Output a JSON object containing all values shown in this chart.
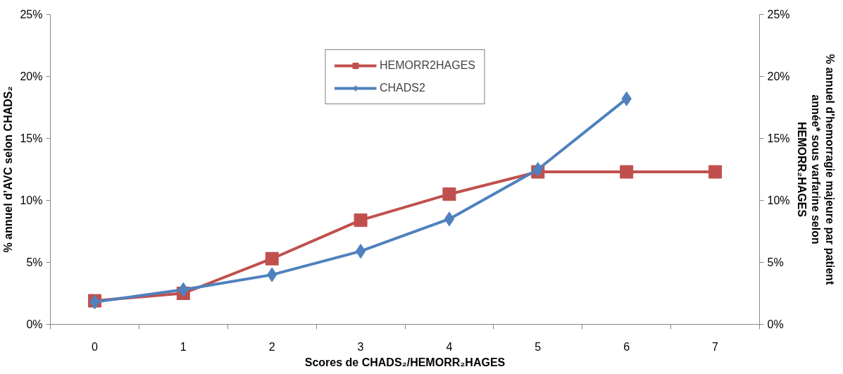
{
  "chart_data": {
    "type": "line",
    "categories": [
      "0",
      "1",
      "2",
      "3",
      "4",
      "5",
      "6",
      "7"
    ],
    "xlabel": "Scores de CHADS₂/HEMORR₂HAGES",
    "ylabel": "% annuel d’AVC selon CHADS₂",
    "y2label": "% annuel d'hemorragie majeure par patient\nannée* sous varfarine selon\nHEMORR₂HAGES",
    "ylim": [
      0,
      25
    ],
    "yticks": [
      {
        "value": 0,
        "label": "0%"
      },
      {
        "value": 5,
        "label": "5%"
      },
      {
        "value": 10,
        "label": "10%"
      },
      {
        "value": 15,
        "label": "15%"
      },
      {
        "value": 20,
        "label": "20%"
      },
      {
        "value": 25,
        "label": "25%"
      }
    ],
    "y2lim": [
      0,
      25
    ],
    "y2ticks": [
      {
        "value": 0,
        "label": "0%"
      },
      {
        "value": 5,
        "label": "5%"
      },
      {
        "value": 10,
        "label": "10%"
      },
      {
        "value": 15,
        "label": "15%"
      },
      {
        "value": 20,
        "label": "20%"
      },
      {
        "value": 25,
        "label": "25%"
      }
    ],
    "series": [
      {
        "name": "HEMORR2HAGES",
        "color": "#c0504d",
        "marker": "square",
        "values": [
          1.9,
          2.5,
          5.3,
          8.4,
          10.5,
          12.3,
          12.3,
          12.3
        ]
      },
      {
        "name": "CHADS2",
        "color": "#4f81bd",
        "marker": "diamond",
        "values": [
          1.8,
          2.8,
          4.0,
          5.9,
          8.5,
          12.5,
          18.2,
          null
        ]
      }
    ],
    "grid": false,
    "legend": "top",
    "line_style": "solid"
  }
}
